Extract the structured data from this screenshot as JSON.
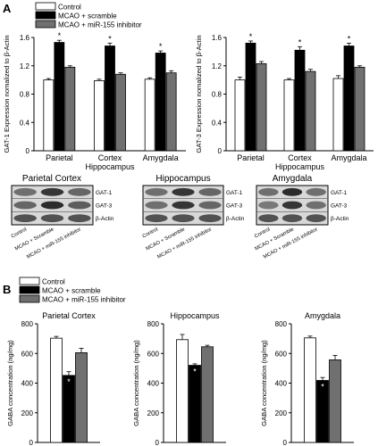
{
  "panel_labels": [
    "A",
    "B"
  ],
  "legend_a": [
    {
      "label": "Control",
      "color": "#ffffff"
    },
    {
      "label": "MCAO + scramble",
      "color": "#000000"
    },
    {
      "label": "MCAO + miR-155 inhibitor",
      "color": "#707070"
    }
  ],
  "legend_b": [
    {
      "label": "Control",
      "color": "#ffffff"
    },
    {
      "label": "MCAO + scramble",
      "color": "#000000"
    },
    {
      "label": "MCAO + miR-155 inhibitor",
      "color": "#707070"
    }
  ],
  "chart_data": [
    {
      "type": "bar",
      "ylabel": "GAT-1 Expression nomalized to β-Actin",
      "categories": [
        "Parietal",
        "Cortex",
        "Amygdala"
      ],
      "category_sublabels": [
        "",
        "Hippocampus",
        ""
      ],
      "ylim": [
        0,
        1.6
      ],
      "yticks": [
        "0",
        "0.4",
        "0.8",
        "1.2",
        "1.6"
      ],
      "series": [
        {
          "name": "Control",
          "values": [
            1.0,
            0.99,
            1.01
          ],
          "errors": [
            0.02,
            0.02,
            0.02
          ]
        },
        {
          "name": "MCAO + scramble",
          "values": [
            1.53,
            1.48,
            1.38
          ],
          "errors": [
            0.03,
            0.04,
            0.03
          ]
        },
        {
          "name": "MCAO + miR-155 inhibitor",
          "values": [
            1.18,
            1.08,
            1.1
          ],
          "errors": [
            0.02,
            0.02,
            0.03
          ]
        }
      ],
      "significance": [
        "*",
        "*",
        "*"
      ]
    },
    {
      "type": "bar",
      "ylabel": "GAT-3 Expression nomalized to β-Actin",
      "categories": [
        "Parietal",
        "Cortex",
        "Amygdala"
      ],
      "category_sublabels": [
        "",
        "Hippocampus",
        ""
      ],
      "ylim": [
        0,
        1.6
      ],
      "yticks": [
        "0",
        "0.4",
        "0.8",
        "1.2",
        "1.6"
      ],
      "series": [
        {
          "name": "Control",
          "values": [
            1.0,
            1.0,
            1.02
          ],
          "errors": [
            0.04,
            0.02,
            0.04
          ]
        },
        {
          "name": "MCAO + scramble",
          "values": [
            1.52,
            1.42,
            1.48
          ],
          "errors": [
            0.03,
            0.05,
            0.04
          ]
        },
        {
          "name": "MCAO + miR-155 inhibitor",
          "values": [
            1.23,
            1.12,
            1.18
          ],
          "errors": [
            0.03,
            0.03,
            0.02
          ]
        }
      ],
      "significance": [
        "*",
        "*",
        "*"
      ]
    },
    {
      "type": "bar",
      "title": "Parietal Cortex",
      "ylabel": "GABA concentration (ng/mg)",
      "ylim": [
        0,
        800
      ],
      "yticks": [
        "0",
        "200",
        "400",
        "600",
        "800"
      ],
      "series": [
        {
          "name": "Control",
          "values": [
            703
          ],
          "errors": [
            12
          ]
        },
        {
          "name": "MCAO + scramble",
          "values": [
            452
          ],
          "errors": [
            25
          ]
        },
        {
          "name": "MCAO + miR-155 inhibitor",
          "values": [
            605
          ],
          "errors": [
            30
          ]
        }
      ],
      "significance": [
        "*"
      ]
    },
    {
      "type": "bar",
      "title": "Hippocampus",
      "ylabel": "GABA concentration (ng/mg)",
      "ylim": [
        0,
        800
      ],
      "yticks": [
        "0",
        "200",
        "400",
        "600",
        "800"
      ],
      "series": [
        {
          "name": "Control",
          "values": [
            693
          ],
          "errors": [
            35
          ]
        },
        {
          "name": "MCAO + scramble",
          "values": [
            520
          ],
          "errors": [
            10
          ]
        },
        {
          "name": "MCAO + miR-155 inhibitor",
          "values": [
            645
          ],
          "errors": [
            10
          ]
        }
      ],
      "significance": [
        "*"
      ]
    },
    {
      "type": "bar",
      "title": "Amygdala",
      "ylabel": "GABA concentration (ng/mg)",
      "ylim": [
        0,
        800
      ],
      "yticks": [
        "0",
        "200",
        "400",
        "600",
        "800"
      ],
      "series": [
        {
          "name": "Control",
          "values": [
            705
          ],
          "errors": [
            12
          ]
        },
        {
          "name": "MCAO + scramble",
          "values": [
            418
          ],
          "errors": [
            20
          ]
        },
        {
          "name": "MCAO + miR-155 inhibitor",
          "values": [
            557
          ],
          "errors": [
            30
          ]
        }
      ],
      "significance": [
        "*"
      ]
    }
  ],
  "blots": [
    {
      "title": "Parietal Cortex",
      "band_labels": [
        "GAT-1",
        "GAT-3",
        "β-Actin"
      ],
      "lane_labels": [
        "Control",
        "MCAO + Scramble",
        "MCAO + miR-155 inhibitor"
      ]
    },
    {
      "title": "Hippocampus",
      "band_labels": [
        "GAT-1",
        "GAT-3",
        "β-Actin"
      ],
      "lane_labels": [
        "Control",
        "MCAO + Scramble",
        "MCAO + miR-155 inhibitor"
      ]
    },
    {
      "title": "Amygdala",
      "band_labels": [
        "GAT-1",
        "GAT-3",
        "β-Actin"
      ],
      "lane_labels": [
        "Control",
        "MCAO + Scramble",
        "MCAO + miR-155 inhibitor"
      ]
    }
  ]
}
